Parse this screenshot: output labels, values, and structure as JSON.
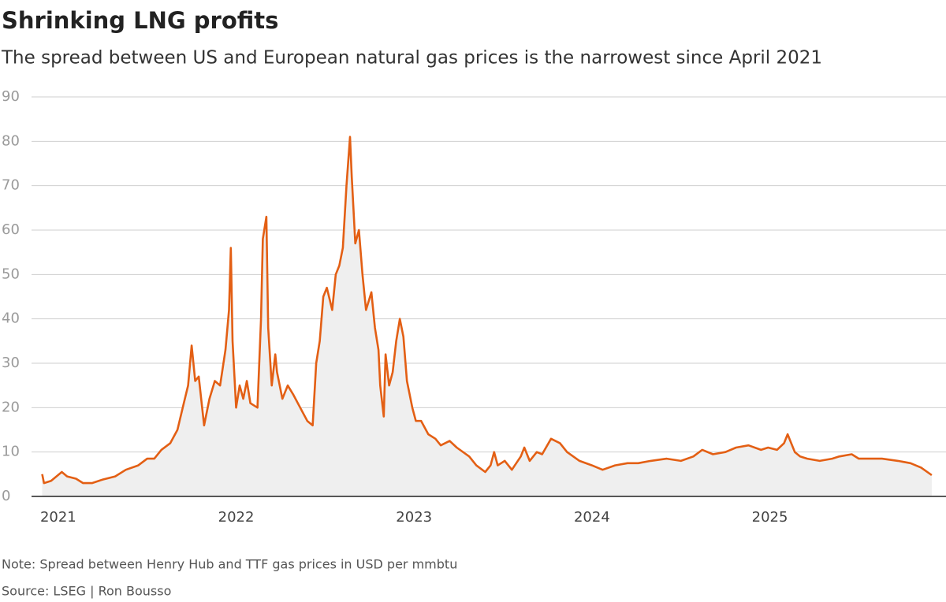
{
  "chart_data": {
    "type": "line",
    "title": "Shrinking LNG profits",
    "subtitle": "The spread between US and European natural gas prices is the narrowest since April 2021",
    "note": "Note: Spread between Henry Hub and TTF gas prices in USD per mmbtu",
    "source": "Source: LSEG | Ron Bousso",
    "color": "#e35f14",
    "fill": "#efefef",
    "grid": true,
    "xlim": [
      2020.85,
      2025.99
    ],
    "xticks": [
      2021,
      2022,
      2023,
      2024,
      2025
    ],
    "ylim": [
      0,
      90
    ],
    "yticks": [
      0,
      10,
      20,
      30,
      40,
      50,
      60,
      70,
      80,
      90
    ],
    "x": [
      2020.91,
      2020.92,
      2020.96,
      2021.02,
      2021.05,
      2021.1,
      2021.14,
      2021.19,
      2021.25,
      2021.32,
      2021.38,
      2021.45,
      2021.5,
      2021.54,
      2021.58,
      2021.63,
      2021.67,
      2021.7,
      2021.73,
      2021.75,
      2021.77,
      2021.79,
      2021.82,
      2021.85,
      2021.88,
      2021.91,
      2021.94,
      2021.96,
      2021.97,
      2021.98,
      2022.0,
      2022.02,
      2022.04,
      2022.06,
      2022.08,
      2022.12,
      2022.14,
      2022.15,
      2022.17,
      2022.18,
      2022.2,
      2022.22,
      2022.23,
      2022.26,
      2022.29,
      2022.32,
      2022.36,
      2022.4,
      2022.43,
      2022.45,
      2022.47,
      2022.49,
      2022.51,
      2022.54,
      2022.56,
      2022.58,
      2022.6,
      2022.62,
      2022.64,
      2022.65,
      2022.67,
      2022.69,
      2022.71,
      2022.73,
      2022.76,
      2022.78,
      2022.8,
      2022.81,
      2022.83,
      2022.84,
      2022.86,
      2022.88,
      2022.9,
      2022.92,
      2022.94,
      2022.96,
      2022.99,
      2023.01,
      2023.04,
      2023.08,
      2023.12,
      2023.15,
      2023.2,
      2023.24,
      2023.31,
      2023.35,
      2023.4,
      2023.43,
      2023.45,
      2023.47,
      2023.51,
      2023.55,
      2023.6,
      2023.62,
      2023.65,
      2023.69,
      2023.72,
      2023.77,
      2023.82,
      2023.86,
      2023.93,
      2024.0,
      2024.06,
      2024.13,
      2024.2,
      2024.26,
      2024.33,
      2024.42,
      2024.5,
      2024.57,
      2024.62,
      2024.68,
      2024.75,
      2024.81,
      2024.88,
      2024.95,
      2024.99,
      2025.04,
      2025.08,
      2025.1,
      2025.14,
      2025.17,
      2025.21,
      2025.28,
      2025.35,
      2025.39,
      2025.46,
      2025.5,
      2025.57,
      2025.63,
      2025.72,
      2025.79,
      2025.85,
      2025.91
    ],
    "values": [
      5,
      3,
      3.5,
      5.5,
      4.5,
      4,
      3,
      3,
      3.8,
      4.5,
      6,
      7,
      8.5,
      8.5,
      10.5,
      12,
      15,
      20,
      25,
      34,
      26,
      27,
      16,
      22,
      26,
      25,
      33,
      42,
      56,
      35,
      20,
      25,
      22,
      26,
      21,
      20,
      40,
      58,
      63,
      38,
      25,
      32,
      28,
      22,
      25,
      23,
      20,
      17,
      16,
      30,
      35,
      45,
      47,
      42,
      50,
      52,
      56,
      70,
      81,
      72,
      57,
      60,
      50,
      42,
      46,
      38,
      33,
      25,
      18,
      32,
      25,
      28,
      35,
      40,
      36,
      26,
      20,
      17,
      17,
      14,
      13,
      11.5,
      12.5,
      11,
      9,
      7,
      5.5,
      7,
      10,
      7,
      8,
      6,
      9,
      11,
      8,
      10,
      9.5,
      13,
      12,
      10,
      8,
      7,
      6,
      7,
      7.5,
      7.5,
      8,
      8.5,
      8,
      9,
      10.5,
      9.5,
      10,
      11,
      11.5,
      10.5,
      11,
      10.5,
      12,
      14,
      10,
      9,
      8.5,
      8,
      8.5,
      9,
      9.5,
      8.5,
      8.5,
      8.5,
      8,
      7.5,
      6.5,
      4.8
    ]
  }
}
